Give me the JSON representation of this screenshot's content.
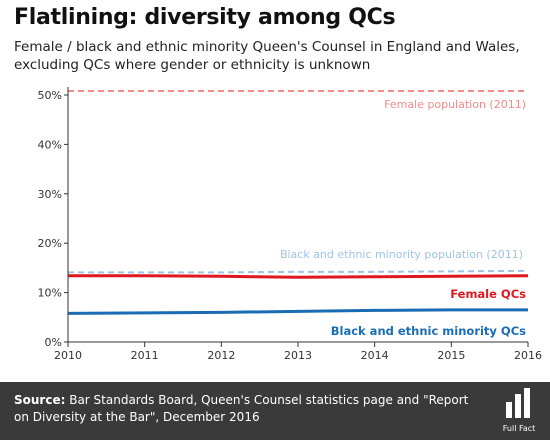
{
  "header": {
    "title": "Flatlining: diversity among QCs",
    "subtitle": "Female / black and ethnic minority Queen's Counsel in England and Wales, excluding QCs where gender or ethnicity is unknown"
  },
  "footer": {
    "source_label": "Source:",
    "source_text": " Bar Standards Board, Queen's Counsel statistics page and \"Report on Diversity at the Bar\", December 2016",
    "logo_text": "Full Fact"
  },
  "colors": {
    "female": "#e0171f",
    "female_reference": "#f28b8b",
    "bame": "#1a6db5",
    "bame_reference": "#9ec3e6",
    "axis": "#333333",
    "footer_bg": "#3a3a3a"
  },
  "chart_data": {
    "type": "line",
    "x": [
      2010,
      2011,
      2012,
      2013,
      2014,
      2015,
      2016
    ],
    "xlim": [
      2010,
      2016
    ],
    "ylim": [
      0,
      50
    ],
    "y_ticks": [
      0,
      10,
      20,
      30,
      40,
      50
    ],
    "y_tick_labels": [
      "0%",
      "10%",
      "20%",
      "30%",
      "40%",
      "50%"
    ],
    "x_tick_labels": [
      "2010",
      "2011",
      "2012",
      "2013",
      "2014",
      "2015",
      "2016"
    ],
    "grid": false,
    "series": [
      {
        "name": "Female population (2011)",
        "style": "dashed",
        "color_key": "female_reference",
        "values": [
          50.8,
          50.8,
          50.8,
          50.8,
          50.8,
          50.8,
          50.8
        ]
      },
      {
        "name": "Black and ethnic minority population (2011)",
        "style": "dashed",
        "color_key": "bame_reference",
        "values": [
          14.1,
          14.1,
          14.1,
          14.2,
          14.2,
          14.3,
          14.4
        ]
      },
      {
        "name": "Female QCs",
        "style": "solid",
        "color_key": "female",
        "values": [
          13.4,
          13.4,
          13.3,
          13.1,
          13.2,
          13.3,
          13.4
        ]
      },
      {
        "name": "Black and ethnic minority QCs",
        "style": "solid",
        "color_key": "bame",
        "values": [
          5.8,
          5.9,
          6.0,
          6.2,
          6.4,
          6.5,
          6.5
        ]
      }
    ]
  }
}
